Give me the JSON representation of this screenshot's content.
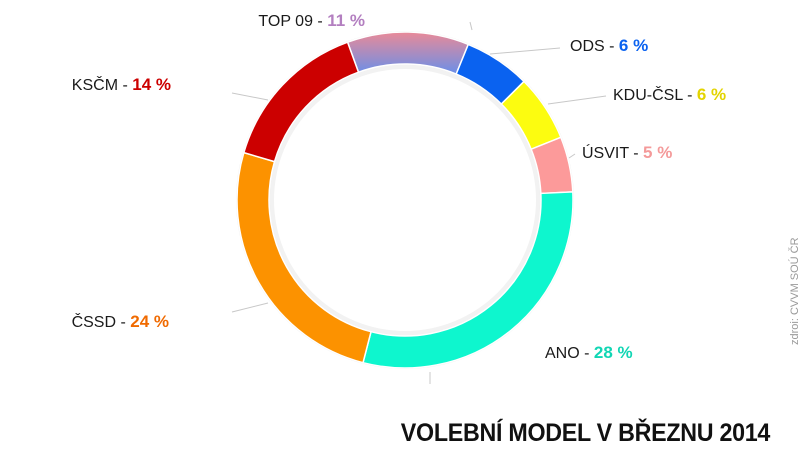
{
  "chart_data": {
    "type": "donut",
    "title": "VOLEBNÍ MODEL V BŘEZNU 2014",
    "source": "zdroj: CVVM SOÚ ČR",
    "slices": [
      {
        "label": "TOP 09 - ",
        "value_text": "11 %",
        "value": 11,
        "color": "#e98a98",
        "color2": "#6a8fe8",
        "text_color": "#b37fc0"
      },
      {
        "label": "ODS - ",
        "value_text": "6 %",
        "value": 6,
        "color": "#0a62f0",
        "text_color": "#0a62f0"
      },
      {
        "label": "KDU-ČSL - ",
        "value_text": "6 %",
        "value": 6,
        "color": "#fcfc10",
        "text_color": "#e3d400"
      },
      {
        "label": "ÚSVIT - ",
        "value_text": "5 %",
        "value": 5,
        "color": "#fc9a9a",
        "text_color": "#f49a9a"
      },
      {
        "label": "ANO - ",
        "value_text": "28 %",
        "value": 28,
        "color": "#0ef6ce",
        "text_color": "#11d6b4"
      },
      {
        "label": "ČSSD - ",
        "value_text": "24 %",
        "value": 24,
        "color": "#fc9200",
        "text_color": "#f06a00"
      },
      {
        "label": "KSČM - ",
        "value_text": "14 %",
        "value": 14,
        "color": "#cc0000",
        "text_color": "#cc0000"
      }
    ]
  }
}
